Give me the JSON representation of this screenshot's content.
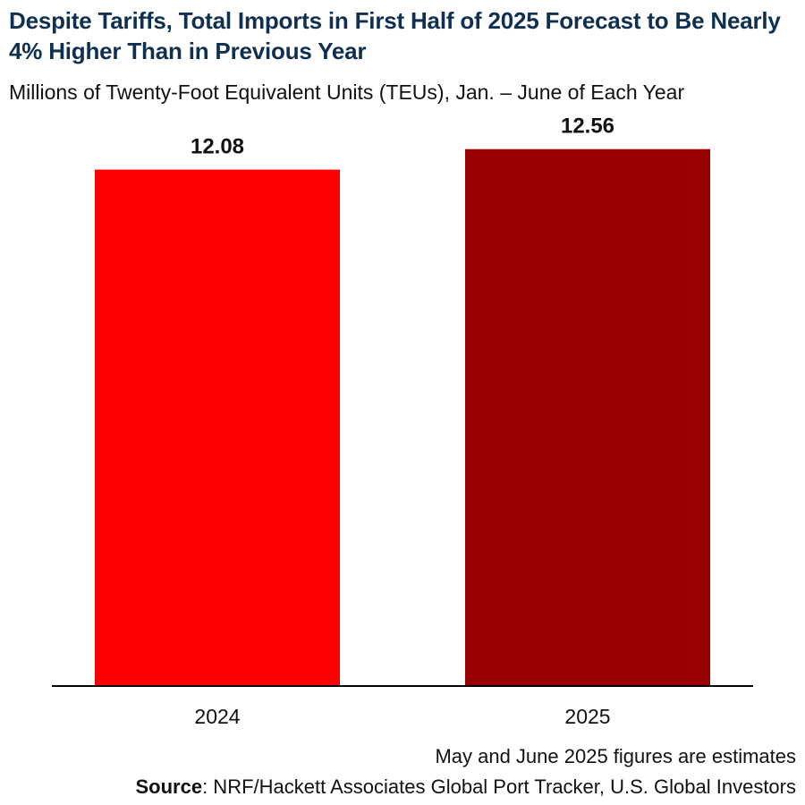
{
  "chart_data": {
    "type": "bar",
    "title": "Despite Tariffs, Total Imports in First Half of 2025 Forecast to Be Nearly 4% Higher Than in Previous Year",
    "subtitle": "Millions of Twenty-Foot Equivalent Units (TEUs), Jan. – June of Each Year",
    "categories": [
      "2024",
      "2025"
    ],
    "values": [
      12.08,
      12.56
    ],
    "data_labels": [
      "12.08",
      "12.56"
    ],
    "bar_colors": [
      "#ff0000",
      "#990000"
    ],
    "xlabel": "",
    "ylabel": "",
    "ylim": [
      0,
      13.6
    ],
    "grid": false,
    "legend": "none"
  },
  "footer": {
    "note": "May and June 2025 figures are estimates",
    "source_label": "Source",
    "source_text": ": NRF/Hackett Associates Global Port Tracker, U.S. Global Investors"
  },
  "colors": {
    "title": "#0f3050",
    "axis": "#000000",
    "text": "#111111"
  }
}
